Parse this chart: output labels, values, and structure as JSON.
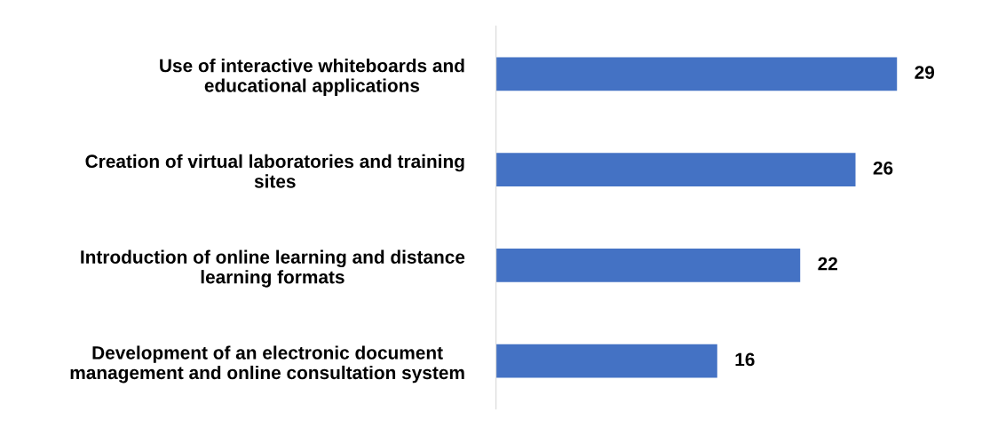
{
  "chart_data": {
    "type": "bar",
    "orientation": "horizontal",
    "categories": [
      "Use of interactive whiteboards and\neducational applications",
      "Creation of virtual laboratories and training\nsites",
      "Introduction of online learning and distance\nlearning formats",
      "Development of an electronic document\nmanagement and online consultation system"
    ],
    "values": [
      29,
      26,
      22,
      16
    ],
    "color": "#4472c4",
    "data_labels": true,
    "tick_labels": "y",
    "grid": false,
    "legend": false
  }
}
